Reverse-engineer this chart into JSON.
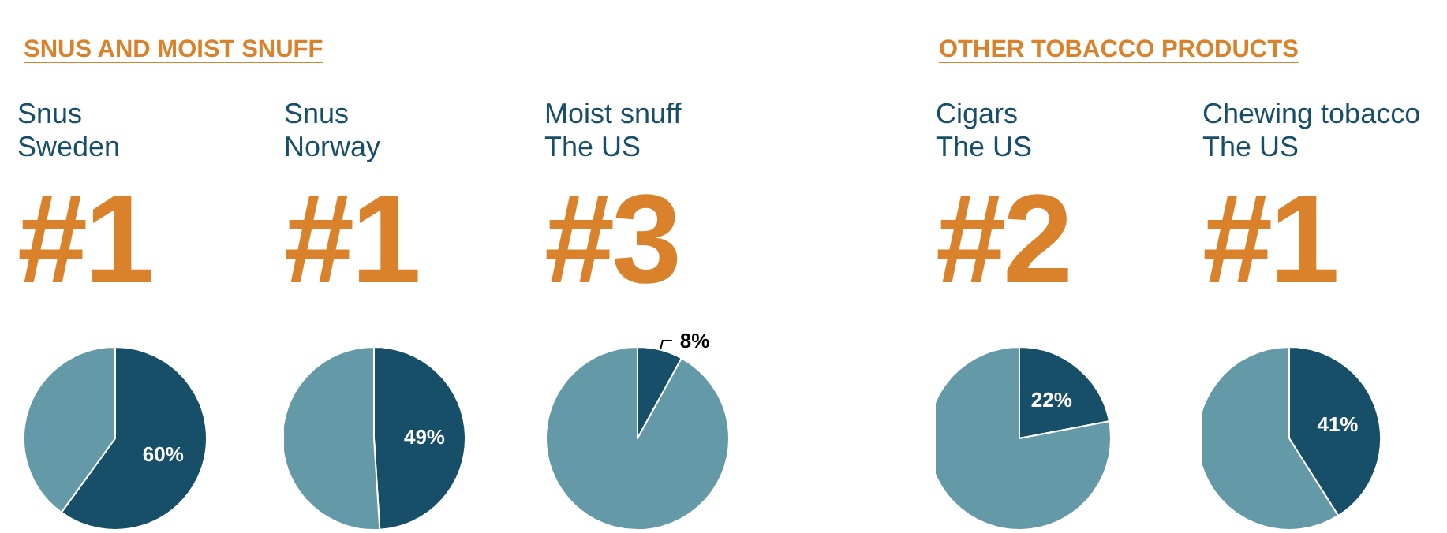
{
  "chart_data": [
    {
      "type": "other",
      "title": "SNUS AND MOIST SNUFF"
    },
    {
      "type": "pie",
      "title": "Snus",
      "subtitle": "Sweden",
      "annotations": [
        "#1"
      ],
      "categories": [
        null,
        null
      ],
      "values": [
        60,
        40
      ],
      "colors": [
        "#164f67",
        "#6499a8"
      ],
      "value_labels": [
        "60%",
        null
      ]
    },
    {
      "type": "pie",
      "title": "Snus",
      "subtitle": "Norway",
      "annotations": [
        "#1"
      ],
      "categories": [
        null,
        null
      ],
      "values": [
        49,
        51
      ],
      "colors": [
        "#164f67",
        "#6499a8"
      ],
      "value_labels": [
        "49%",
        null
      ]
    },
    {
      "type": "pie",
      "title": "Moist snuff",
      "subtitle": "The US",
      "annotations": [
        "#3"
      ],
      "categories": [
        null,
        null
      ],
      "values": [
        8,
        92
      ],
      "colors": [
        "#164f67",
        "#6499a8"
      ],
      "value_labels": [
        "8%",
        null
      ]
    },
    {
      "type": "other",
      "title": "OTHER TOBACCO PRODUCTS"
    },
    {
      "type": "pie",
      "title": "Cigars",
      "subtitle": "The US",
      "annotations": [
        "#2"
      ],
      "categories": [
        null,
        null
      ],
      "values": [
        22,
        78
      ],
      "colors": [
        "#164f67",
        "#6499a8"
      ],
      "value_labels": [
        "22%",
        null
      ]
    },
    {
      "type": "pie",
      "title": "Chewing tobacco",
      "subtitle": "The US",
      "annotations": [
        "#1"
      ],
      "categories": [
        null,
        null
      ],
      "values": [
        41,
        59
      ],
      "colors": [
        "#164f67",
        "#6499a8"
      ],
      "value_labels": [
        "41%",
        null
      ]
    }
  ]
}
